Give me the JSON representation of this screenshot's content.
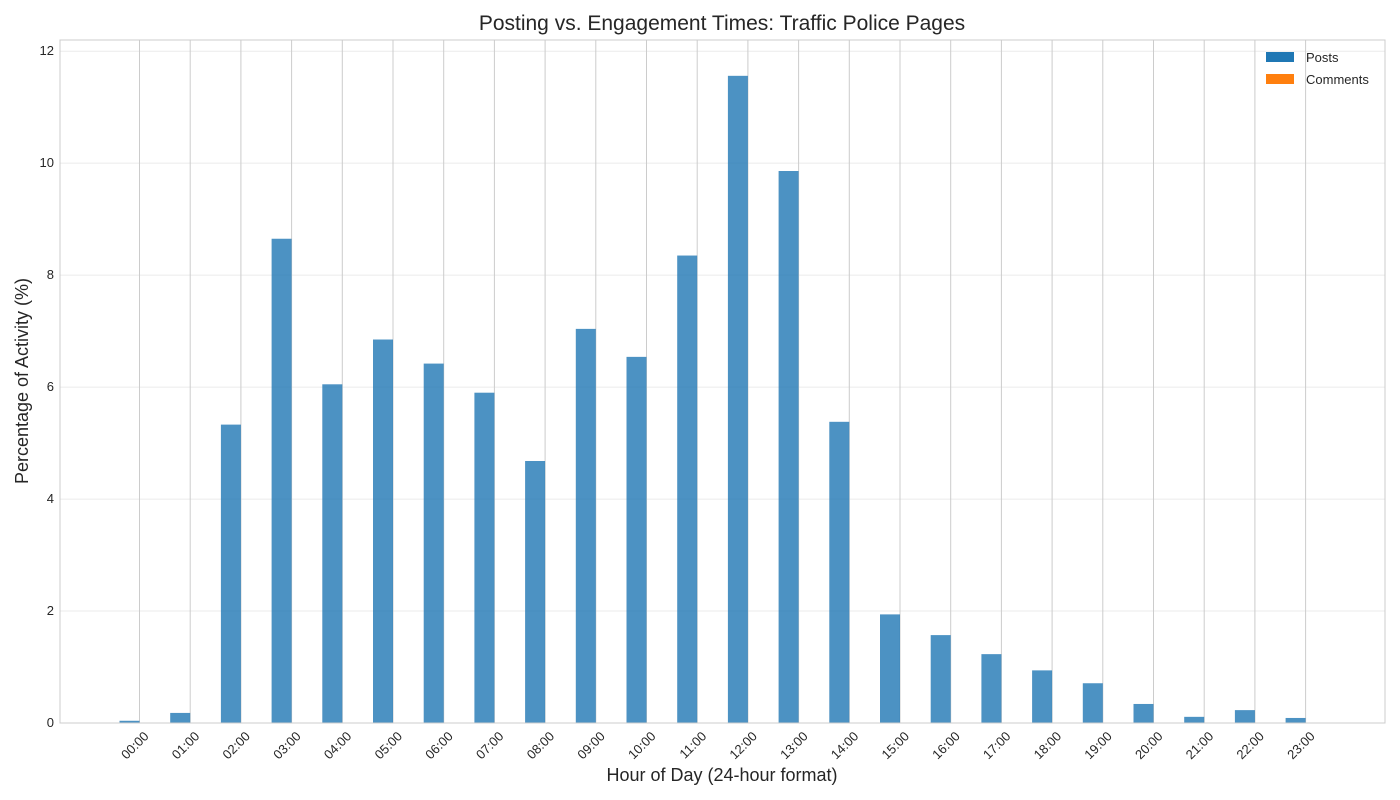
{
  "chart_data": {
    "type": "bar",
    "title": "Posting vs. Engagement Times: Traffic Police Pages",
    "xlabel": "Hour of Day (24-hour format)",
    "ylabel": "Percentage of Activity (%)",
    "categories": [
      "00:00",
      "01:00",
      "02:00",
      "03:00",
      "04:00",
      "05:00",
      "06:00",
      "07:00",
      "08:00",
      "09:00",
      "10:00",
      "11:00",
      "12:00",
      "13:00",
      "14:00",
      "15:00",
      "16:00",
      "17:00",
      "18:00",
      "19:00",
      "20:00",
      "21:00",
      "22:00",
      "23:00"
    ],
    "series": [
      {
        "name": "Posts",
        "color": "#1f77b4",
        "values": [
          0.04,
          0.18,
          5.33,
          8.65,
          6.05,
          6.85,
          6.42,
          5.9,
          4.68,
          7.04,
          6.54,
          8.35,
          11.56,
          9.86,
          5.38,
          1.94,
          1.57,
          1.23,
          0.94,
          0.71,
          0.34,
          0.11,
          0.23,
          0.09
        ]
      },
      {
        "name": "Comments",
        "color": "#ff7f0e",
        "values": [
          0,
          0,
          0,
          0,
          0,
          0,
          0,
          0,
          0,
          0,
          0,
          0,
          0,
          0,
          0,
          0,
          0,
          0,
          0,
          0,
          0,
          0,
          0,
          0
        ]
      }
    ],
    "ylim": [
      0,
      12.2
    ],
    "yticks": [
      0,
      2,
      4,
      6,
      8,
      10,
      12
    ],
    "grid": true,
    "legend_position": "top-right"
  }
}
